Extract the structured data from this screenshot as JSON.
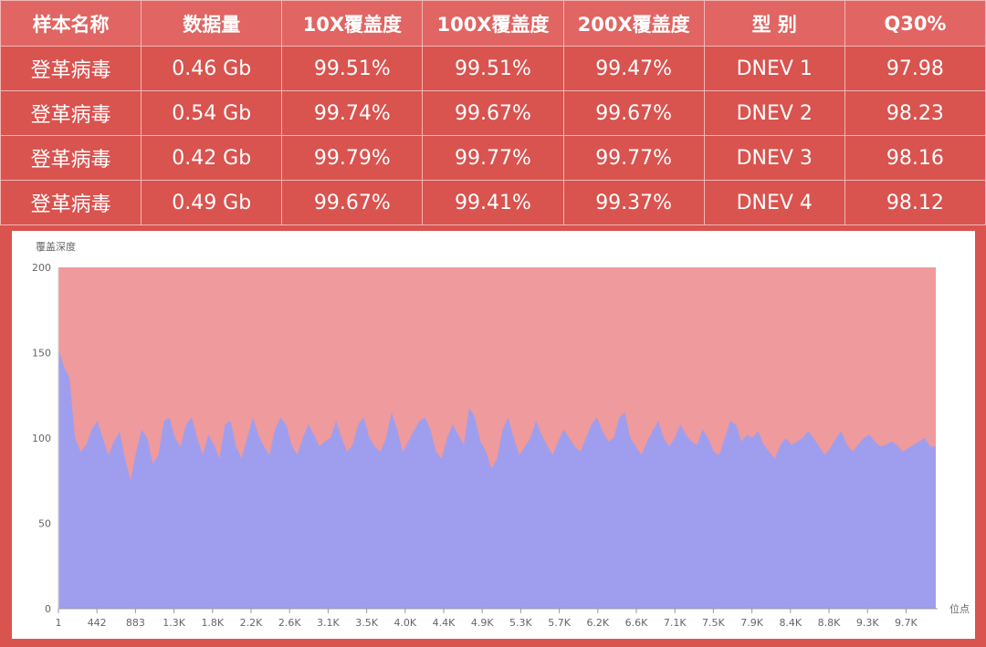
{
  "table": {
    "headers": [
      "样本名称",
      "数据量",
      "10X覆盖度",
      "100X覆盖度",
      "200X覆盖度",
      "型 别",
      "Q30%"
    ],
    "rows": [
      [
        "登革病毒",
        "0.46 Gb",
        "99.51%",
        "99.51%",
        "99.47%",
        "DNEV 1",
        "97.98"
      ],
      [
        "登革病毒",
        "0.54 Gb",
        "99.74%",
        "99.67%",
        "99.67%",
        "DNEV 2",
        "98.23"
      ],
      [
        "登革病毒",
        "0.42 Gb",
        "99.79%",
        "99.77%",
        "99.77%",
        "DNEV 3",
        "98.16"
      ],
      [
        "登革病毒",
        "0.49 Gb",
        "99.67%",
        "99.41%",
        "99.37%",
        "DNEV 4",
        "98.12"
      ]
    ]
  },
  "chart_data": {
    "type": "area",
    "title": "",
    "ylabel": "覆盖深度",
    "xlabel": "位点",
    "ylim": [
      0,
      200
    ],
    "yticks": [
      "0",
      "50",
      "100",
      "150",
      "200"
    ],
    "xtick_labels": [
      "1",
      "442",
      "883",
      "1.3K",
      "1.8K",
      "2.2K",
      "2.6K",
      "3.1K",
      "3.5K",
      "4.0K",
      "4.4K",
      "4.9K",
      "5.3K",
      "5.7K",
      "6.2K",
      "6.6K",
      "7.1K",
      "7.5K",
      "7.9K",
      "8.4K",
      "8.8K",
      "9.3K",
      "9.7K"
    ],
    "grid": false,
    "colors": {
      "depth_area": "#9f9eee",
      "background_area": "#ef9a9c",
      "background_value": 200
    },
    "series": [
      {
        "values": [
          152,
          142,
          135,
          100,
          92,
          96,
          105,
          110,
          100,
          90,
          98,
          104,
          88,
          75,
          92,
          105,
          100,
          85,
          90,
          110,
          112,
          100,
          95,
          108,
          112,
          100,
          90,
          102,
          96,
          88,
          108,
          110,
          95,
          88,
          100,
          112,
          102,
          95,
          90,
          105,
          112,
          108,
          96,
          90,
          100,
          108,
          102,
          95,
          98,
          100,
          110,
          100,
          92,
          96,
          108,
          112,
          100,
          95,
          92,
          100,
          115,
          105,
          92,
          98,
          104,
          110,
          112,
          105,
          92,
          88,
          100,
          108,
          102,
          96,
          118,
          112,
          98,
          92,
          82,
          88,
          105,
          112,
          100,
          90,
          95,
          100,
          110,
          102,
          96,
          90,
          98,
          105,
          100,
          95,
          92,
          100,
          108,
          112,
          104,
          98,
          100,
          112,
          115,
          100,
          95,
          90,
          98,
          104,
          110,
          100,
          95,
          100,
          108,
          102,
          98,
          96,
          105,
          100,
          92,
          90,
          100,
          110,
          108,
          98,
          102,
          100,
          104,
          96,
          92,
          88,
          96,
          100,
          96,
          98,
          100,
          104,
          100,
          95,
          90,
          94,
          100,
          104,
          96,
          92,
          96,
          100,
          102,
          98,
          95,
          96,
          98,
          96,
          92,
          94,
          96,
          98,
          100,
          95,
          95
        ]
      }
    ]
  }
}
